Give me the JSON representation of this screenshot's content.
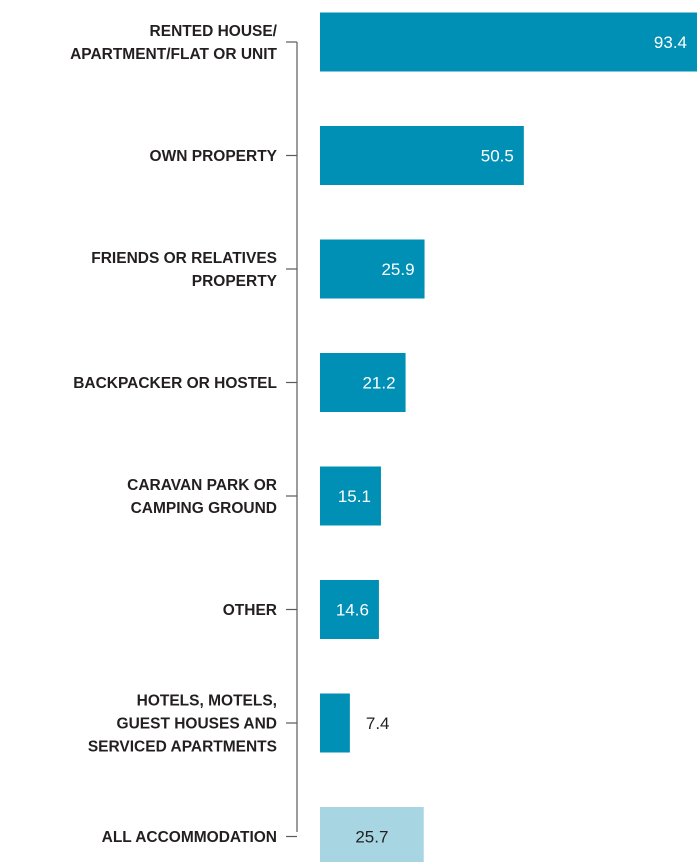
{
  "chart_data": {
    "type": "bar",
    "orientation": "horizontal",
    "categories": [
      [
        "RENTED HOUSE/",
        "APARTMENT/FLAT OR UNIT"
      ],
      [
        "OWN PROPERTY"
      ],
      [
        "FRIENDS OR RELATIVES",
        "PROPERTY"
      ],
      [
        "BACKPACKER OR HOSTEL"
      ],
      [
        "CARAVAN PARK OR",
        "CAMPING GROUND"
      ],
      [
        "OTHER"
      ],
      [
        "HOTELS, MOTELS,",
        "GUEST HOUSES AND",
        "SERVICED APARTMENTS"
      ],
      [
        "ALL ACCOMMODATION"
      ]
    ],
    "values": [
      93.4,
      50.5,
      25.9,
      21.2,
      15.1,
      14.6,
      7.4,
      25.7
    ],
    "value_labels": [
      "93.4",
      "50.5",
      "25.9",
      "21.2",
      "15.1",
      "14.6",
      "7.4",
      "25.7"
    ],
    "highlight_index": 7,
    "xlim": [
      0,
      93.4
    ],
    "title": "",
    "xlabel": "",
    "ylabel": "",
    "grid": false,
    "colors": {
      "bar": "#008fb5",
      "total_bar": "#a7d5e2",
      "axis": "#5a5a5a",
      "category_text": "#231f20",
      "value_text_inside": "#ffffff",
      "value_text_outside": "#231f20"
    }
  }
}
